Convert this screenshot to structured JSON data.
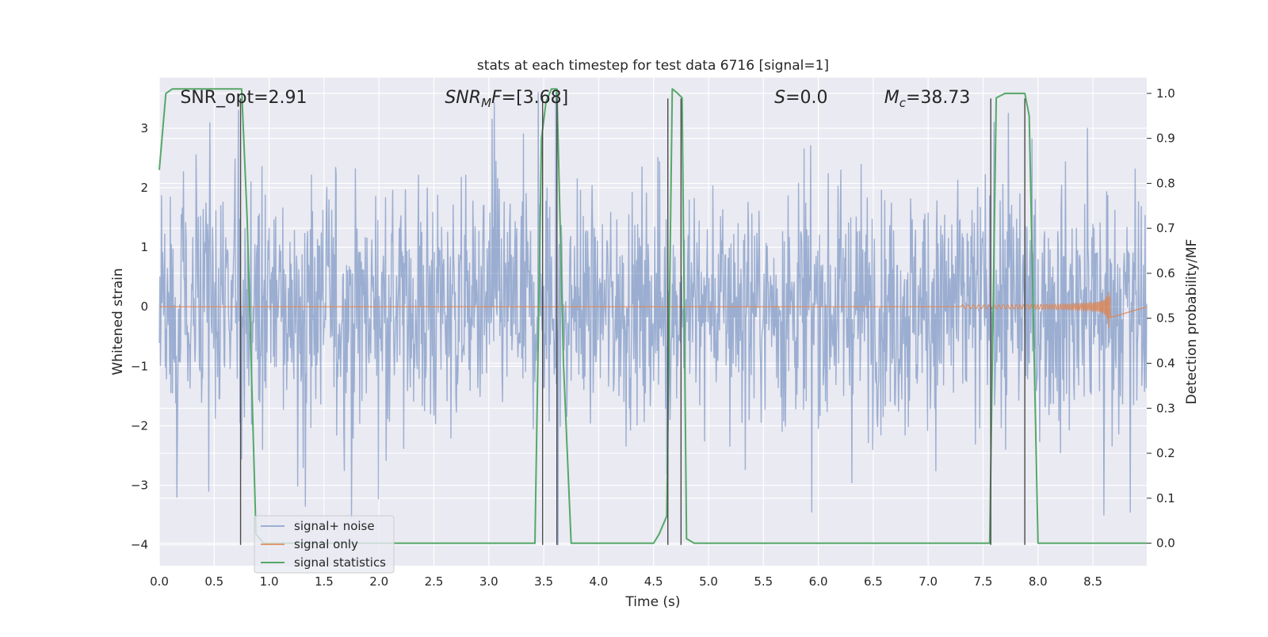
{
  "chart_data": {
    "type": "line",
    "title": "stats at each timestep for test data 6716 [signal=1]",
    "xlabel": "Time (s)",
    "ylabel_left": "Whitened strain",
    "ylabel_right": "Detection probability/MF",
    "xlim": [
      0.0,
      8.99
    ],
    "ylim_left": [
      -4.35,
      3.85
    ],
    "ylim_right": [
      -0.05,
      1.035
    ],
    "x_ticks": [
      "0.0",
      "0.5",
      "1.0",
      "1.5",
      "2.0",
      "2.5",
      "3.0",
      "3.5",
      "4.0",
      "4.5",
      "5.0",
      "5.5",
      "6.0",
      "6.5",
      "7.0",
      "7.5",
      "8.0",
      "8.5"
    ],
    "y_ticks_left": [
      "−4",
      "−3",
      "−2",
      "−1",
      "0",
      "1",
      "2",
      "3"
    ],
    "y_ticks_right": [
      "0.0",
      "0.1",
      "0.2",
      "0.3",
      "0.4",
      "0.5",
      "0.6",
      "0.7",
      "0.8",
      "0.9",
      "1.0"
    ],
    "grid": true,
    "legend_position": "lower-left",
    "annotations": [
      {
        "label": "SNR_opt=2.91",
        "x": 0.19,
        "y": 3.53
      },
      {
        "label": "SNR_MF=[3.68]",
        "x": 2.6,
        "y": 3.53
      },
      {
        "label": "S=0.0",
        "x": 5.6,
        "y": 3.53
      },
      {
        "label": "M_c=38.73",
        "x": 6.6,
        "y": 3.53
      }
    ],
    "series": [
      {
        "name": "signal+ noise",
        "color": "#4c72b0",
        "opacity": 0.5,
        "axis": "left",
        "kind": "noise",
        "sample_rate": 200,
        "envelope": [
          {
            "x": 0.0,
            "amp": 1.1
          },
          {
            "x": 1.5,
            "amp": 1.3
          },
          {
            "x": 3.0,
            "amp": 1.25
          },
          {
            "x": 4.5,
            "amp": 1.15
          },
          {
            "x": 6.0,
            "amp": 1.2
          },
          {
            "x": 7.5,
            "amp": 1.3
          },
          {
            "x": 8.99,
            "amp": 1.2
          }
        ],
        "peaks": [
          {
            "x": 0.46,
            "y": 3.09
          },
          {
            "x": 0.72,
            "y": 3.3
          },
          {
            "x": 1.33,
            "y": -3.35
          },
          {
            "x": 1.75,
            "y": -3.55
          },
          {
            "x": 3.03,
            "y": 3.15
          },
          {
            "x": 3.05,
            "y": 3.43
          },
          {
            "x": 3.45,
            "y": 3.6
          },
          {
            "x": 3.61,
            "y": 3.6
          },
          {
            "x": 3.63,
            "y": -4.0
          },
          {
            "x": 4.62,
            "y": -2.8
          },
          {
            "x": 5.94,
            "y": -3.45
          },
          {
            "x": 7.6,
            "y": 3.1
          },
          {
            "x": 7.73,
            "y": 3.25
          },
          {
            "x": 8.45,
            "y": 3.0
          },
          {
            "x": 8.6,
            "y": -3.5
          },
          {
            "x": 8.84,
            "y": -3.45
          },
          {
            "x": 0.16,
            "y": -3.2
          },
          {
            "x": 0.45,
            "y": -3.1
          }
        ]
      },
      {
        "name": "signal only",
        "color": "#dd8452",
        "opacity": 0.8,
        "axis": "left",
        "kind": "chirp",
        "chirp": {
          "start": 7.3,
          "merger": 8.65,
          "end": 8.66,
          "peak_amp": 0.65,
          "base_amp": 0.02,
          "f0": 20,
          "f1": 60
        }
      },
      {
        "name": "signal statistics",
        "color": "#55a868",
        "opacity": 1.0,
        "axis": "right",
        "x": [
          0.0,
          0.06,
          0.12,
          0.3,
          0.5,
          0.7,
          0.75,
          0.8,
          0.88,
          0.95,
          1.0,
          2.0,
          3.0,
          3.42,
          3.48,
          3.52,
          3.57,
          3.62,
          3.68,
          3.75,
          4.0,
          4.5,
          4.55,
          4.62,
          4.67,
          4.72,
          4.76,
          4.8,
          4.87,
          5.0,
          5.5,
          6.0,
          6.5,
          7.0,
          7.5,
          7.56,
          7.62,
          7.7,
          7.8,
          7.88,
          7.92,
          8.0,
          8.5,
          8.99
        ],
        "values": [
          0.83,
          1.0,
          1.01,
          1.01,
          1.01,
          1.01,
          1.01,
          0.72,
          0.02,
          0.0,
          0.0,
          0.0,
          0.0,
          0.0,
          0.9,
          0.98,
          1.01,
          1.01,
          0.4,
          0.0,
          0.0,
          0.0,
          0.02,
          0.06,
          1.01,
          1.0,
          0.99,
          0.01,
          0.0,
          0.0,
          0.0,
          0.0,
          0.0,
          0.0,
          0.0,
          0.0,
          0.99,
          1.0,
          1.0,
          1.0,
          0.95,
          0.0,
          0.0,
          0.0
        ]
      }
    ],
    "vertical_lines": {
      "color": "#4a4a4a",
      "x": [
        0.74,
        3.49,
        3.62,
        4.63,
        4.75,
        7.57,
        7.88
      ],
      "y_range": [
        -4.0,
        3.5
      ]
    }
  }
}
